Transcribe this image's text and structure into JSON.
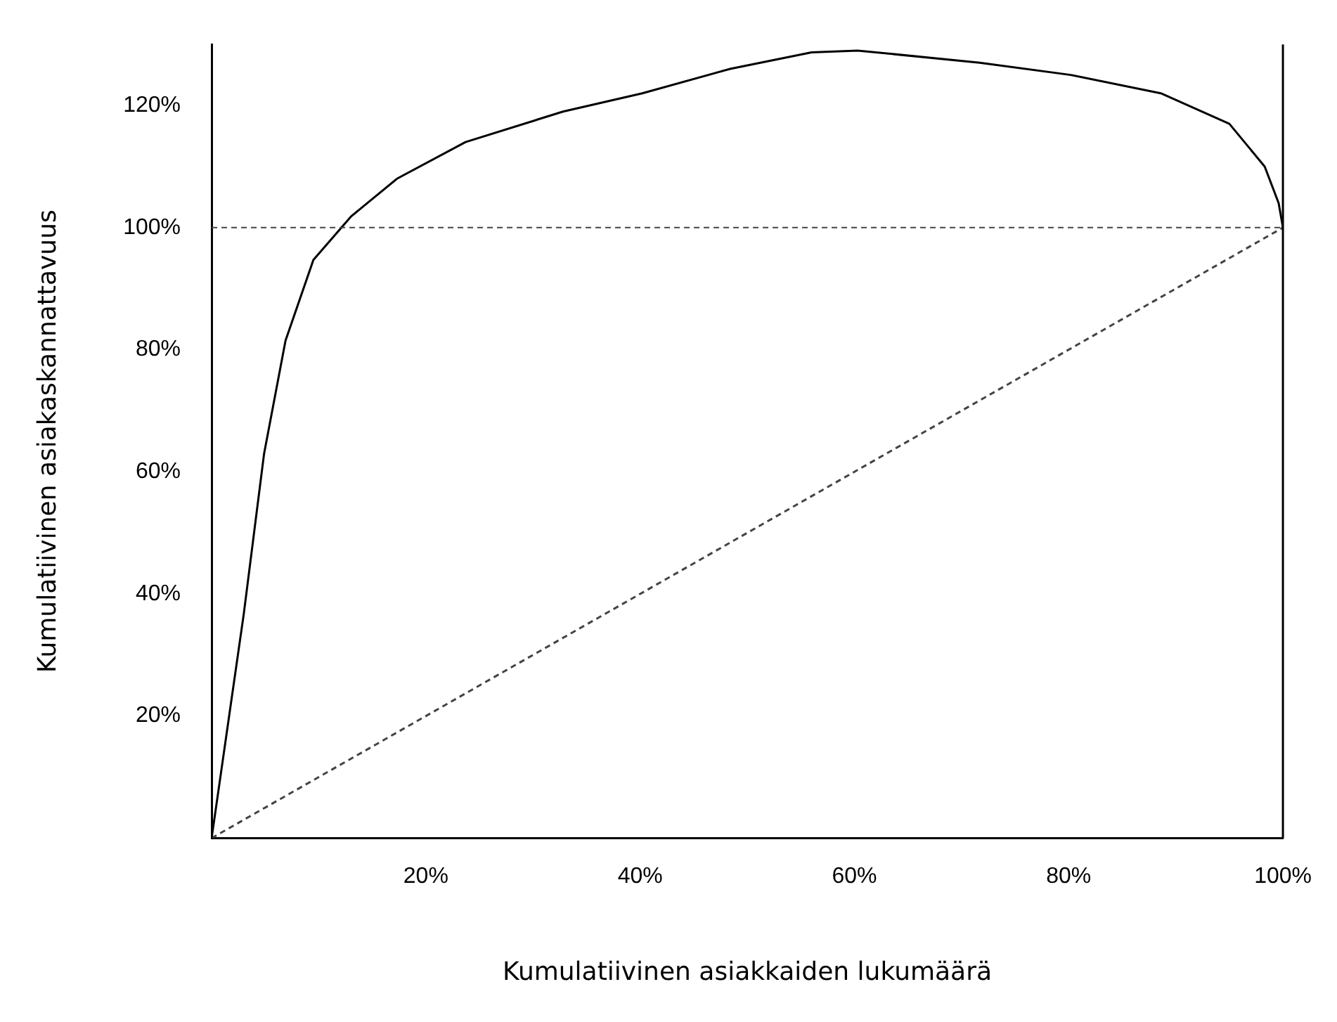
{
  "chart_data": {
    "type": "line",
    "xlabel": "Kumulatiivinen asiakkaiden lukumäärä",
    "ylabel": "Kumulatiivinen asiakaskannattavuus",
    "xlim": [
      0,
      100
    ],
    "ylim": [
      0,
      130
    ],
    "xticks": [
      {
        "value": 20,
        "label": "20%"
      },
      {
        "value": 40,
        "label": "40%"
      },
      {
        "value": 60,
        "label": "60%"
      },
      {
        "value": 80,
        "label": "80%"
      },
      {
        "value": 100,
        "label": "100%"
      }
    ],
    "yticks": [
      {
        "value": 20,
        "label": "20%"
      },
      {
        "value": 40,
        "label": "40%"
      },
      {
        "value": 60,
        "label": "60%"
      },
      {
        "value": 80,
        "label": "80%"
      },
      {
        "value": 100,
        "label": "100%"
      },
      {
        "value": 120,
        "label": "120%"
      }
    ],
    "grid": false,
    "legend": false,
    "marker": "none",
    "series": [
      {
        "color": "#000000",
        "line_style": "solid",
        "x": [
          0,
          3,
          4.9,
          6.9,
          9.5,
          13,
          17.3,
          23.7,
          32.8,
          40.2,
          48.4,
          56,
          60.3,
          71.7,
          80.2,
          88.6,
          95,
          98.3,
          99.6,
          100
        ],
        "values": [
          0,
          36.7,
          63,
          81.5,
          94.7,
          101.8,
          108,
          114,
          119,
          122,
          126,
          128.7,
          129,
          127,
          125,
          122,
          117,
          110,
          104,
          100
        ]
      },
      {
        "color": "#444444",
        "line_style": "dashed",
        "x": [
          0,
          100
        ],
        "values": [
          0,
          100
        ]
      }
    ],
    "ref_lines": [
      {
        "axis": "y",
        "value": 100,
        "color": "#444444",
        "line_style": "dashed"
      }
    ]
  }
}
